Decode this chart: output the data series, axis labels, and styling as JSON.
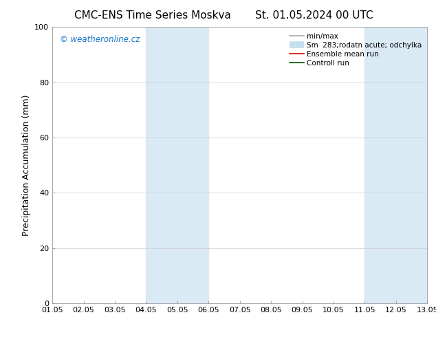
{
  "title_left": "CMC-ENS Time Series Moskva",
  "title_right": "St. 01.05.2024 00 UTC",
  "ylabel": "Precipitation Accumulation (mm)",
  "xlabel": "",
  "ylim": [
    0,
    100
  ],
  "xlim_start": 0,
  "xlim_end": 12,
  "xtick_labels": [
    "01.05",
    "02.05",
    "03.05",
    "04.05",
    "05.05",
    "06.05",
    "07.05",
    "08.05",
    "09.05",
    "10.05",
    "11.05",
    "12.05",
    "13.05"
  ],
  "ytick_values": [
    0,
    20,
    40,
    60,
    80,
    100
  ],
  "shaded_regions": [
    {
      "xstart": 3,
      "xend": 5,
      "color": "#daeaf5"
    },
    {
      "xstart": 10,
      "xend": 12,
      "color": "#daeaf5"
    }
  ],
  "watermark_text": "© weatheronline.cz",
  "watermark_color": "#1a75cc",
  "background_color": "#ffffff",
  "plot_bg_color": "#ffffff",
  "grid_color": "#cccccc",
  "legend_entries": [
    {
      "label": "min/max",
      "color": "#aaaaaa",
      "lw": 1.2,
      "type": "line"
    },
    {
      "label": "Sm  283;rodatn acute; odchylka",
      "color": "#c5dff0",
      "lw": 7,
      "type": "band"
    },
    {
      "label": "Ensemble mean run",
      "color": "#dd0000",
      "lw": 1.2,
      "type": "line"
    },
    {
      "label": "Controll run",
      "color": "#005500",
      "lw": 1.2,
      "type": "line"
    }
  ],
  "title_fontsize": 11,
  "axis_label_fontsize": 9,
  "tick_fontsize": 8,
  "legend_fontsize": 7.5,
  "watermark_fontsize": 8.5
}
